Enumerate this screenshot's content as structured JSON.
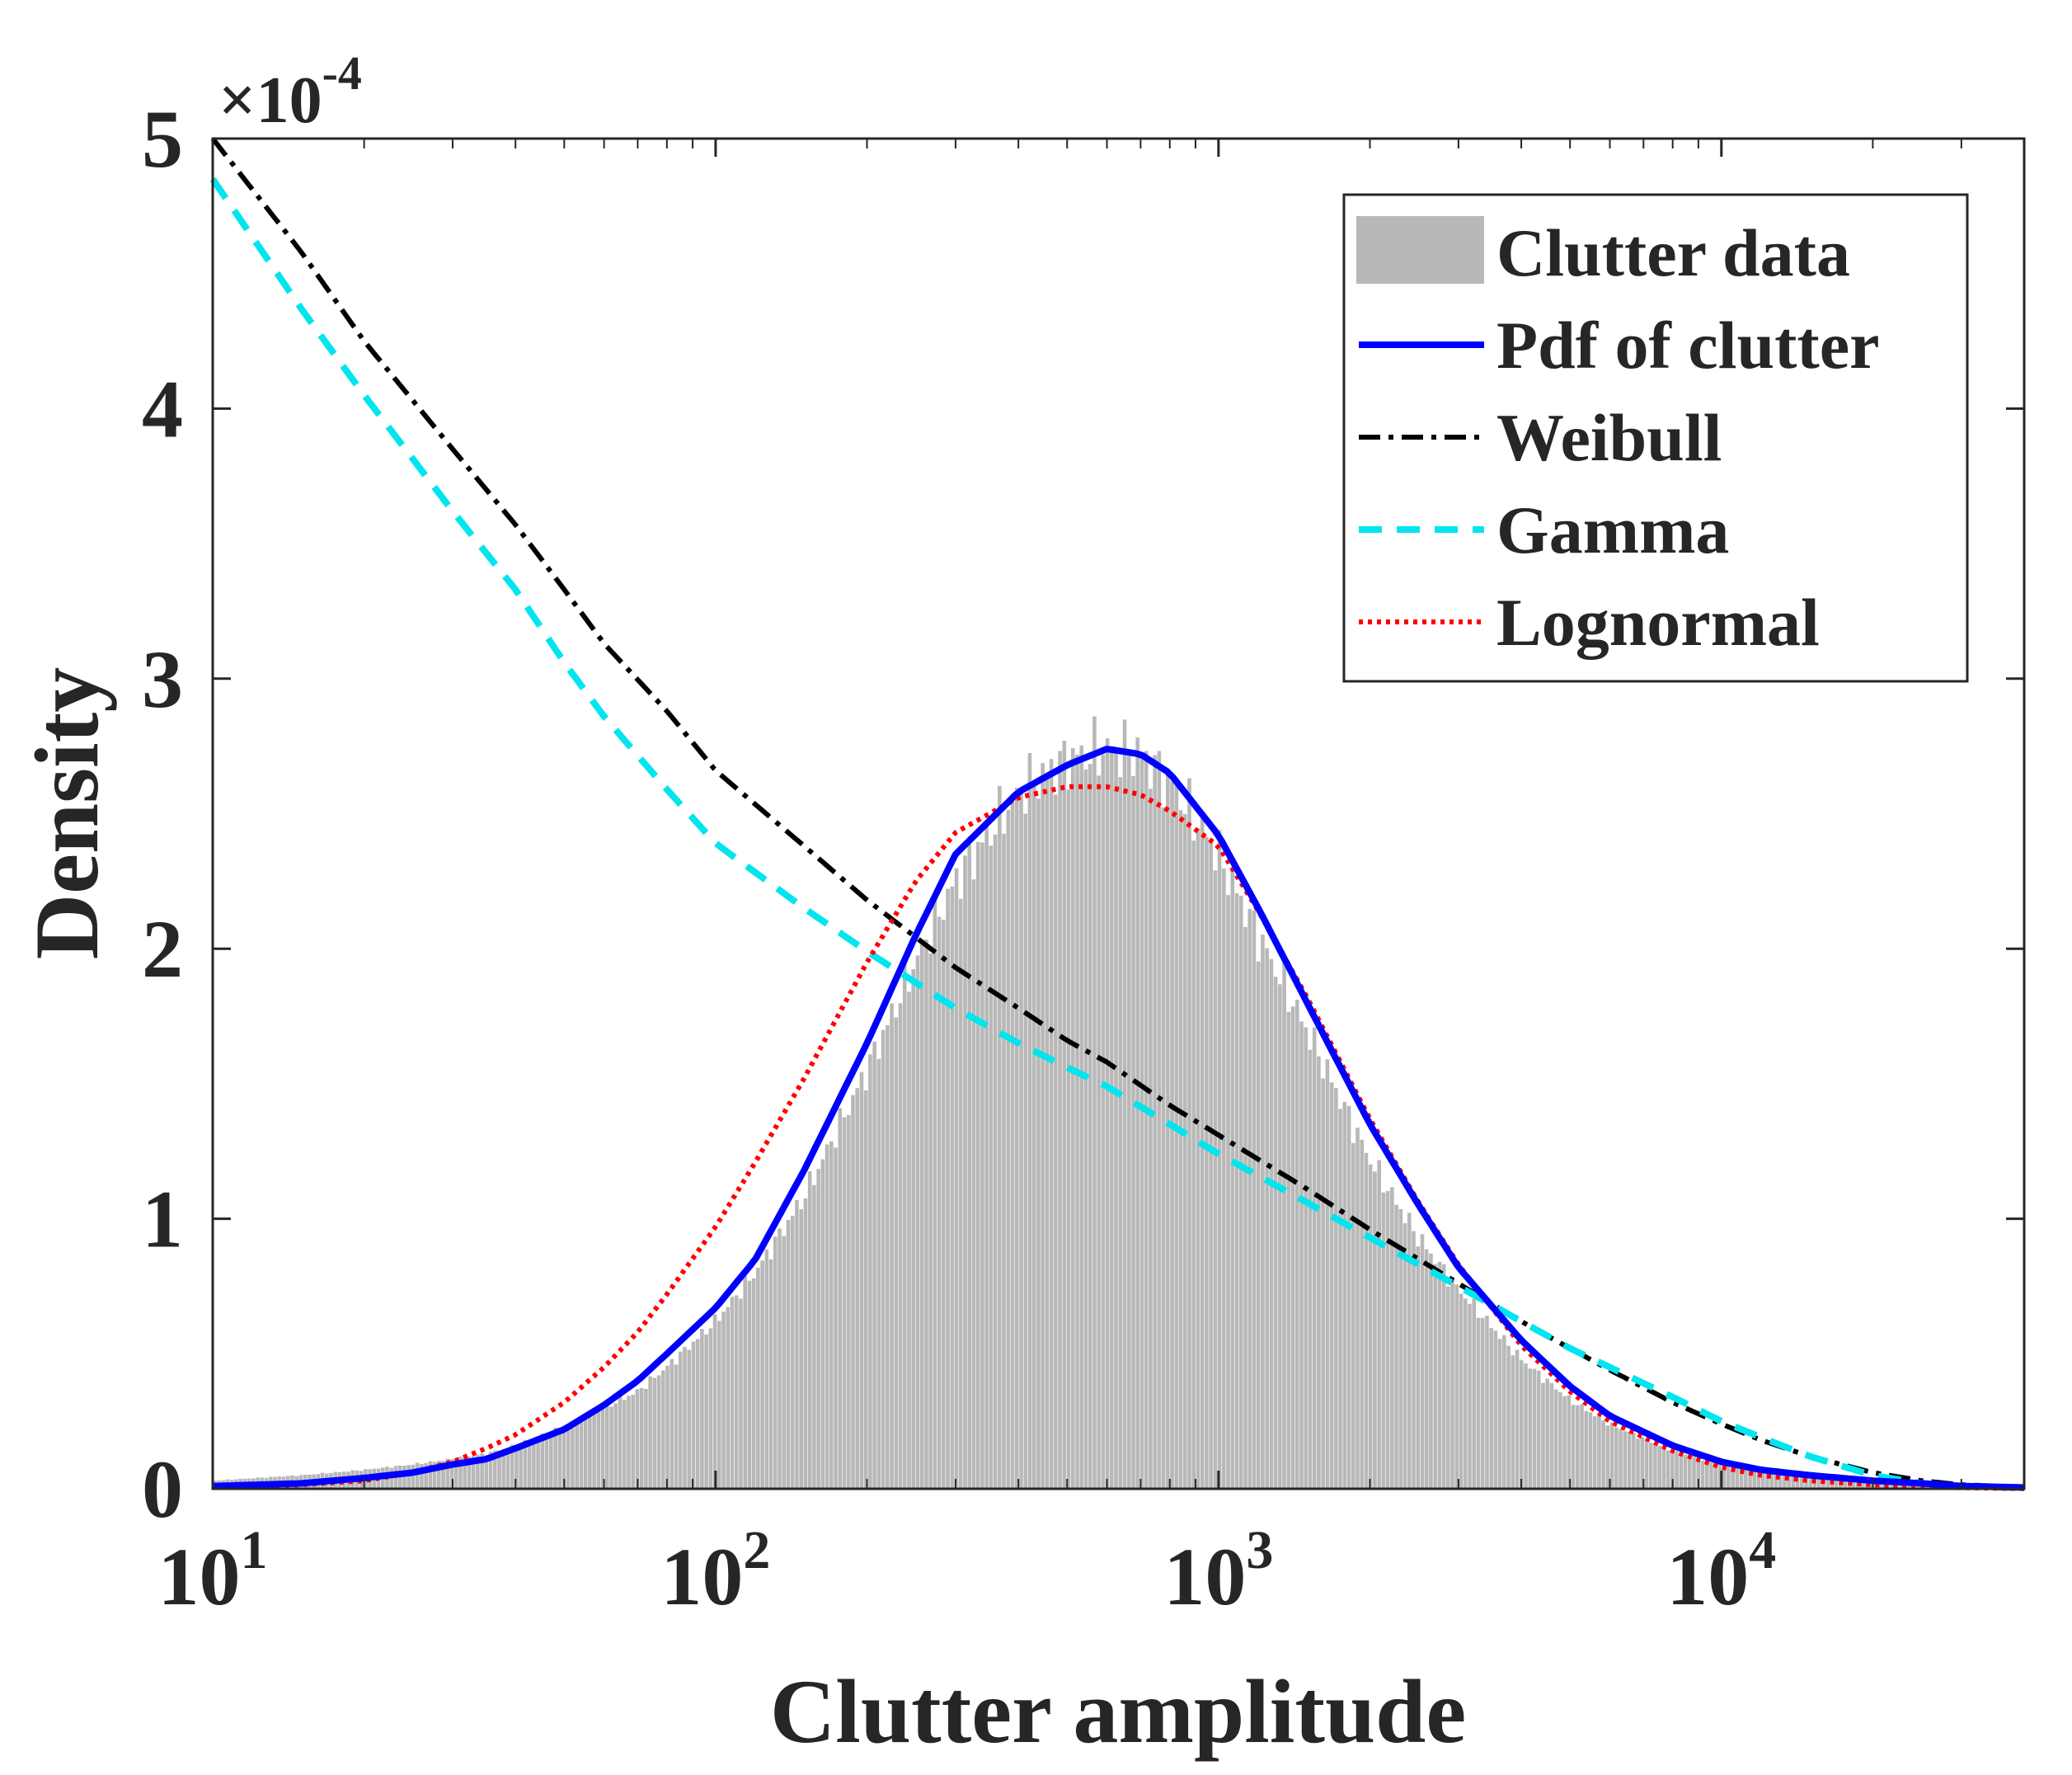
{
  "chart_data": {
    "type": "histogram+line",
    "xlabel": "Clutter amplitude",
    "ylabel": "Density",
    "x_scale": "log",
    "xlim": [
      10,
      40000
    ],
    "ylim": [
      0,
      0.0005
    ],
    "y_multiplier_label": "×10",
    "y_multiplier_exponent": "-4",
    "xticks": [
      {
        "value": 10,
        "base": "10",
        "exp": "1"
      },
      {
        "value": 100,
        "base": "10",
        "exp": "2"
      },
      {
        "value": 1000,
        "base": "10",
        "exp": "3"
      },
      {
        "value": 10000,
        "base": "10",
        "exp": "4"
      }
    ],
    "yticks": [
      {
        "value": 0,
        "label": "0"
      },
      {
        "value": 0.0001,
        "label": "1"
      },
      {
        "value": 0.0002,
        "label": "2"
      },
      {
        "value": 0.0003,
        "label": "3"
      },
      {
        "value": 0.0004,
        "label": "4"
      },
      {
        "value": 0.0005,
        "label": "5"
      }
    ],
    "legend_position": "top-right",
    "histogram": {
      "name": "Clutter data",
      "color": "#b8b8b8",
      "x": [
        10,
        15,
        20,
        25,
        30,
        35,
        40,
        50,
        60,
        70,
        80,
        100,
        120,
        150,
        200,
        250,
        300,
        400,
        500,
        600,
        700,
        800,
        1000,
        1200,
        1500,
        2000,
        2500,
        3000,
        4000,
        5000,
        6000,
        8000,
        10000,
        12000,
        15000,
        20000,
        25000,
        30000,
        40000
      ],
      "y": [
        3e-06,
        5e-06,
        7e-06,
        9e-06,
        1.1e-05,
        1.3e-05,
        1.6e-05,
        2.3e-05,
        3e-05,
        3.6e-05,
        4.5e-05,
        6.2e-05,
        8e-05,
        0.000108,
        0.000155,
        0.000195,
        0.000225,
        0.000258,
        0.00027,
        0.000274,
        0.000272,
        0.000262,
        0.000235,
        0.000205,
        0.00017,
        0.000122,
        9.3e-05,
        7.4e-05,
        4.8e-05,
        3.3e-05,
        2.4e-05,
        1.4e-05,
        9e-06,
        6e-06,
        4e-06,
        2e-06,
        1e-06,
        5e-07,
        1e-07
      ]
    },
    "series": [
      {
        "name": "Pdf of clutter",
        "style": "solid",
        "color": "#0000ff",
        "x": [
          10,
          15,
          20,
          25,
          30,
          35,
          40,
          50,
          60,
          70,
          80,
          100,
          120,
          150,
          200,
          250,
          300,
          400,
          500,
          600,
          700,
          800,
          1000,
          1200,
          1500,
          2000,
          2500,
          3000,
          4000,
          5000,
          6000,
          8000,
          10000,
          12000,
          15000,
          20000,
          25000,
          30000,
          40000
        ],
        "y": [
          1e-06,
          2e-06,
          4e-06,
          6e-06,
          9e-06,
          1.1e-05,
          1.5e-05,
          2.2e-05,
          3.1e-05,
          4e-05,
          5e-05,
          6.7e-05,
          8.5e-05,
          0.000118,
          0.000165,
          0.000205,
          0.000235,
          0.000258,
          0.000268,
          0.000274,
          0.000272,
          0.000265,
          0.000242,
          0.000215,
          0.00018,
          0.000135,
          0.000105,
          8.2e-05,
          5.5e-05,
          3.8e-05,
          2.7e-05,
          1.6e-05,
          1e-05,
          7e-06,
          5e-06,
          3e-06,
          2e-06,
          1e-06,
          5e-07
        ]
      },
      {
        "name": "Weibull",
        "style": "dashdot",
        "color": "#000000",
        "x": [
          10,
          15,
          20,
          30,
          40,
          50,
          60,
          80,
          100,
          150,
          200,
          300,
          400,
          500,
          600,
          800,
          1000,
          1500,
          2000,
          3000,
          4000,
          5000,
          6000,
          8000,
          10000,
          12000,
          15000,
          20000,
          25000,
          30000,
          40000
        ],
        "y": [
          0.0005,
          0.000458,
          0.000425,
          0.000385,
          0.000357,
          0.000333,
          0.000313,
          0.000288,
          0.000266,
          0.000238,
          0.000218,
          0.000193,
          0.000178,
          0.000166,
          0.000158,
          0.000142,
          0.000131,
          0.000111,
          9.6e-05,
          7.6e-05,
          6.2e-05,
          5.2e-05,
          4.4e-05,
          3.2e-05,
          2.4e-05,
          1.8e-05,
          1.2e-05,
          6e-06,
          3e-06,
          1.5e-06,
          5e-07
        ]
      },
      {
        "name": "Gamma",
        "style": "dashed",
        "color": "#00e5ee",
        "x": [
          10,
          15,
          20,
          30,
          40,
          50,
          60,
          80,
          100,
          150,
          200,
          300,
          400,
          500,
          600,
          800,
          1000,
          1500,
          2000,
          3000,
          4000,
          5000,
          6000,
          8000,
          10000,
          12000,
          15000,
          20000,
          25000,
          30000,
          40000
        ],
        "y": [
          0.000485,
          0.000437,
          0.000405,
          0.000362,
          0.000333,
          0.000306,
          0.000286,
          0.000259,
          0.000239,
          0.000215,
          0.000199,
          0.000178,
          0.000165,
          0.000156,
          0.000149,
          0.000135,
          0.000124,
          0.000106,
          9.3e-05,
          7.5e-05,
          6.2e-05,
          5.2e-05,
          4.5e-05,
          3.4e-05,
          2.5e-05,
          1.9e-05,
          1.2e-05,
          5e-06,
          2e-06,
          1e-06,
          3e-07
        ]
      },
      {
        "name": "Lognormal",
        "style": "dotted",
        "color": "#ff0000",
        "x": [
          10,
          15,
          20,
          25,
          30,
          35,
          40,
          50,
          60,
          70,
          80,
          100,
          120,
          150,
          200,
          250,
          300,
          400,
          500,
          600,
          700,
          800,
          1000,
          1200,
          1500,
          2000,
          2500,
          3000,
          4000,
          5000,
          6000,
          8000,
          10000,
          12000,
          15000,
          20000,
          25000,
          30000,
          40000
        ],
        "y": [
          5e-07,
          1.5e-06,
          3e-06,
          6e-06,
          1e-05,
          1.5e-05,
          2e-05,
          3.2e-05,
          4.5e-05,
          5.8e-05,
          7.2e-05,
          9.7e-05,
          0.000121,
          0.000152,
          0.000195,
          0.000225,
          0.000243,
          0.000256,
          0.00026,
          0.00026,
          0.000257,
          0.000251,
          0.000238,
          0.000214,
          0.000182,
          0.000137,
          0.000106,
          8.3e-05,
          5.3e-05,
          3.6e-05,
          2.5e-05,
          1.4e-05,
          8e-06,
          5e-06,
          3e-06,
          1.5e-06,
          8e-07,
          4e-07,
          1e-07
        ]
      }
    ]
  }
}
